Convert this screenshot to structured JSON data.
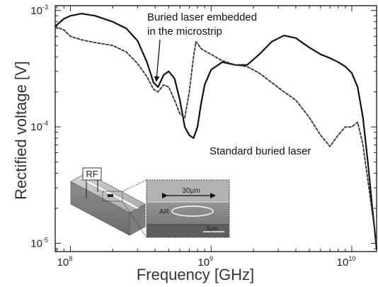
{
  "chart_data": {
    "type": "line",
    "xlabel": "Frequency [GHz]",
    "ylabel": "Rectified voltage [V]",
    "x_scale": "log",
    "y_scale": "log",
    "xlim": [
      78000000.0,
      15000000000.0
    ],
    "ylim": [
      8.5e-06,
      0.0011
    ],
    "x_ticks": [
      {
        "value": 100000000.0,
        "base": "10",
        "exp": "8"
      },
      {
        "value": 1000000000.0,
        "base": "10",
        "exp": "9"
      },
      {
        "value": 10000000000.0,
        "base": "10",
        "exp": "10"
      }
    ],
    "y_ticks": [
      {
        "value": 1e-05,
        "base": "10",
        "exp": "-5"
      },
      {
        "value": 0.0001,
        "base": "10",
        "exp": "-4"
      },
      {
        "value": 0.001,
        "base": "10",
        "exp": "-3"
      }
    ],
    "series": [
      {
        "name": "Buried laser embedded in the microstrip",
        "style": "solid",
        "color": "#111111",
        "x": [
          78000000.0,
          90000000.0,
          100000000.0,
          120000000.0,
          150000000.0,
          200000000.0,
          250000000.0,
          300000000.0,
          350000000.0,
          390000000.0,
          420000000.0,
          460000000.0,
          500000000.0,
          550000000.0,
          600000000.0,
          650000000.0,
          700000000.0,
          750000000.0,
          800000000.0,
          850000000.0,
          900000000.0,
          1000000000.0,
          1200000000.0,
          1500000000.0,
          1800000000.0,
          2200000000.0,
          2700000000.0,
          3300000000.0,
          4000000000.0,
          5000000000.0,
          6000000000.0,
          7000000000.0,
          8000000000.0,
          9000000000.0,
          10000000000.0,
          11000000000.0,
          12000000000.0,
          13000000000.0,
          14000000000.0,
          15000000000.0
        ],
        "y": [
          0.00073,
          0.00085,
          0.0009,
          0.00094,
          0.0009,
          0.0008,
          0.0007,
          0.00055,
          0.00036,
          0.00024,
          0.00022,
          0.00028,
          0.0003,
          0.00026,
          0.00017,
          0.0001,
          8.5e-05,
          8e-05,
          0.0001,
          0.00016,
          0.00023,
          0.00031,
          0.00036,
          0.00034,
          0.00034,
          0.00042,
          0.00054,
          0.00061,
          0.00058,
          0.00048,
          0.00042,
          0.00039,
          0.00036,
          0.00033,
          0.00029,
          0.00022,
          0.00012,
          5e-05,
          2e-05,
          9e-06
        ]
      },
      {
        "name": "Standard buried laser",
        "style": "dashed",
        "color": "#333333",
        "x": [
          78000000.0,
          90000000.0,
          100000000.0,
          120000000.0,
          150000000.0,
          200000000.0,
          250000000.0,
          300000000.0,
          350000000.0,
          390000000.0,
          420000000.0,
          460000000.0,
          500000000.0,
          550000000.0,
          600000000.0,
          650000000.0,
          700000000.0,
          750000000.0,
          780000000.0,
          800000000.0,
          850000000.0,
          900000000.0,
          1000000000.0,
          1200000000.0,
          1500000000.0,
          1800000000.0,
          2200000000.0,
          2700000000.0,
          3300000000.0,
          4000000000.0,
          5000000000.0,
          6000000000.0,
          7000000000.0,
          8000000000.0,
          9000000000.0,
          10000000000.0,
          11000000000.0,
          12000000000.0,
          13000000000.0,
          14000000000.0,
          15000000000.0
        ],
        "y": [
          0.00073,
          0.00068,
          0.0006,
          0.00056,
          0.00053,
          0.0005,
          0.00044,
          0.00035,
          0.00027,
          0.00021,
          0.0002,
          0.00023,
          0.00022,
          0.00017,
          0.00013,
          0.00012,
          0.0002,
          0.0004,
          0.00054,
          0.00052,
          0.00047,
          0.00045,
          0.00042,
          0.00037,
          0.00034,
          0.00033,
          0.00029,
          0.00024,
          0.0002,
          0.00017,
          0.00012,
          8.5e-05,
          6.8e-05,
          8.5e-05,
          0.0001,
          0.0001,
          0.00011,
          7e-05,
          3.5e-05,
          1.8e-05,
          1e-05
        ]
      }
    ],
    "annotations": [
      {
        "lines": [
          "Buried laser embedded",
          "in the microstrip"
        ],
        "arrow": true,
        "target_series": 0,
        "target_x": 380000000.0
      },
      {
        "lines": [
          "Standard buried laser"
        ],
        "arrow": false
      }
    ],
    "inset": {
      "labels": [
        "RF",
        "30μm",
        "AR",
        "5μm"
      ]
    }
  }
}
